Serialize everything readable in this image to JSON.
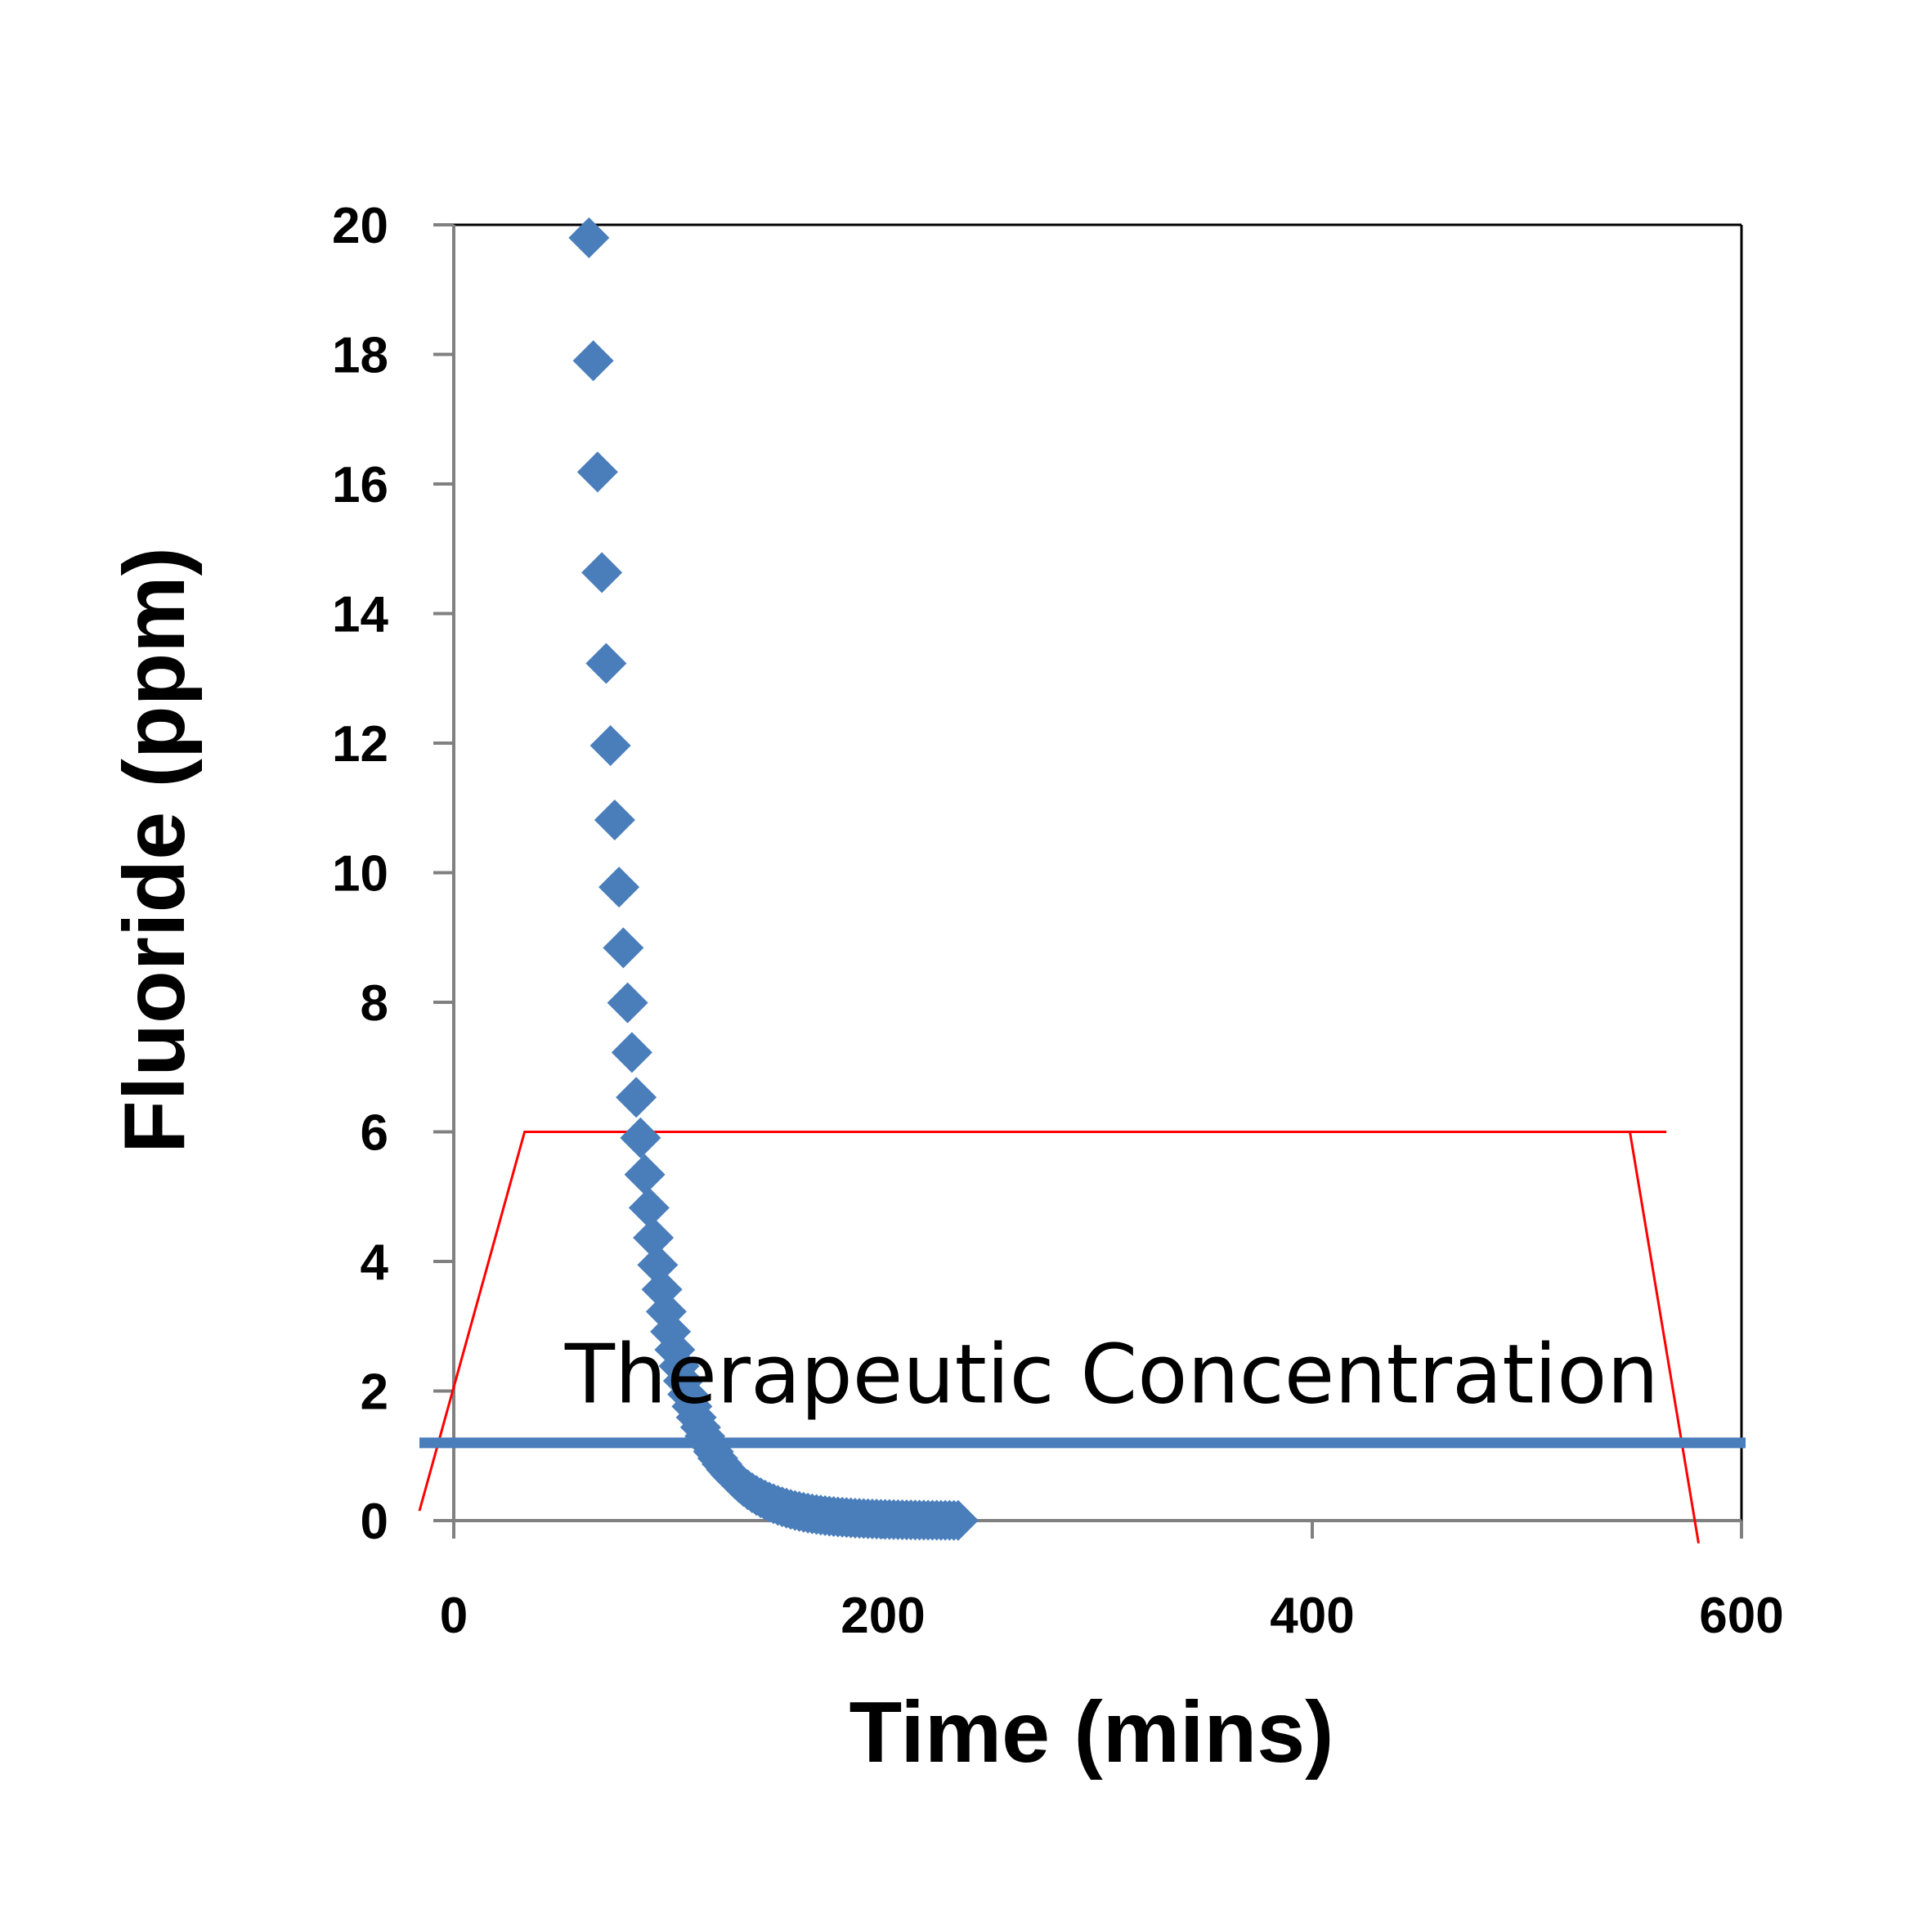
{
  "chart_data": {
    "type": "scatter",
    "xlabel": "Time (mins)",
    "ylabel": "Fluoride (ppm)",
    "xlim": [
      0,
      600
    ],
    "ylim": [
      0,
      20
    ],
    "xticks": [
      0,
      200,
      400,
      600
    ],
    "yticks": [
      0,
      2,
      4,
      6,
      8,
      10,
      12,
      14,
      16,
      18,
      20
    ],
    "grid": false,
    "legend": "none",
    "colors": {
      "points": "#4a7ebb",
      "threshold_line": "#4a7ebb",
      "outline": "#ff0000",
      "frame": "#000000",
      "axis": "#808080"
    },
    "series": [
      {
        "marker": "diamond",
        "decay": {
          "x_start": 63,
          "x_end": 235,
          "x_step": 2,
          "y0": 19.8,
          "rate_per_min": 0.0504
        }
      }
    ],
    "reference_line": {
      "y": 1.2
    },
    "outline_shape": [
      [
        -16,
        0.15
      ],
      [
        33,
        6
      ],
      [
        550,
        6
      ],
      [
        565,
        6
      ]
    ],
    "outline_shape_right": [
      [
        548,
        6
      ],
      [
        580,
        -0.35
      ]
    ],
    "annotations": [
      {
        "text": "Therapeutic Concentration",
        "x": 67,
        "y": 2.05
      }
    ]
  }
}
